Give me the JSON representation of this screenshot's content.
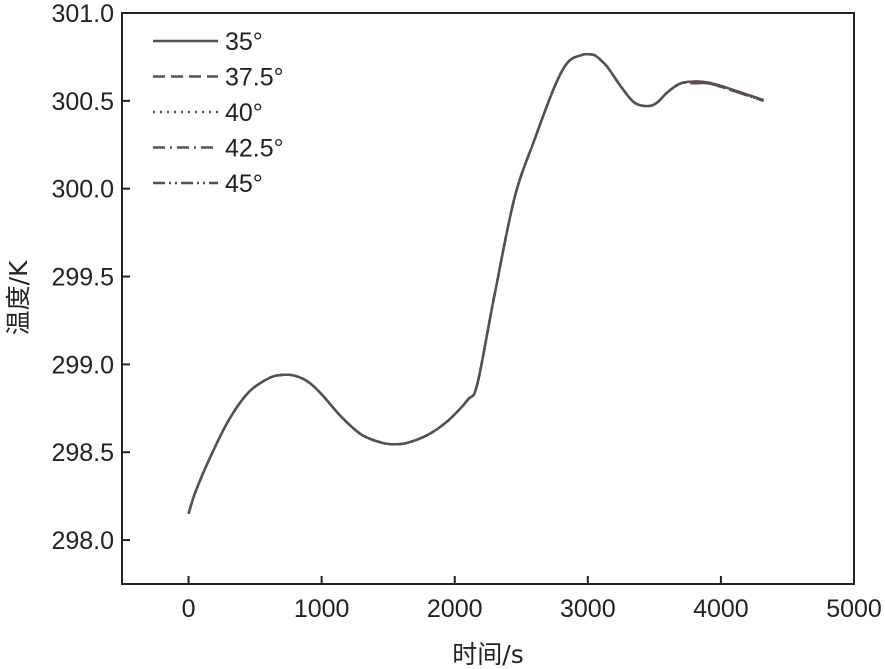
{
  "chart_data": {
    "type": "line",
    "xlabel": "时间/s",
    "ylabel": "温度/K",
    "xlim": [
      -500,
      5000
    ],
    "ylim": [
      297.75,
      301.0
    ],
    "xticks": [
      0,
      1000,
      2000,
      3000,
      4000,
      5000
    ],
    "yticks": [
      298.0,
      298.5,
      299.0,
      299.5,
      300.0,
      300.5,
      301.0
    ],
    "ytick_labels": [
      "298.0",
      "298.5",
      "299.0",
      "299.5",
      "300.0",
      "300.5",
      "301.0"
    ],
    "grid": false,
    "legend_position": "top-left",
    "line_color": "#5a4f4c",
    "x": [
      0,
      50,
      150,
      300,
      450,
      600,
      700,
      800,
      900,
      1000,
      1150,
      1300,
      1450,
      1550,
      1650,
      1800,
      1950,
      2100,
      2170,
      2300,
      2450,
      2600,
      2750,
      2850,
      2950,
      3000,
      3050,
      3100,
      3150,
      3250,
      3350,
      3450,
      3520,
      3600,
      3700,
      3800,
      3900,
      4000,
      4100,
      4200,
      4320
    ],
    "series": [
      {
        "name": "35°",
        "dash": "solid",
        "values": [
          298.15,
          298.27,
          298.45,
          298.68,
          298.84,
          298.92,
          298.94,
          298.935,
          298.9,
          298.83,
          298.7,
          298.6,
          298.555,
          298.545,
          298.555,
          298.6,
          298.68,
          298.8,
          298.89,
          299.4,
          299.95,
          300.28,
          300.58,
          300.72,
          300.76,
          300.765,
          300.76,
          300.73,
          300.69,
          300.58,
          300.49,
          300.47,
          300.49,
          300.55,
          300.6,
          300.61,
          300.605,
          300.585,
          300.56,
          300.535,
          300.505
        ]
      },
      {
        "name": "37.5°",
        "dash": "dashed",
        "values": [
          298.15,
          298.27,
          298.45,
          298.68,
          298.84,
          298.92,
          298.94,
          298.935,
          298.9,
          298.83,
          298.7,
          298.6,
          298.555,
          298.545,
          298.555,
          298.6,
          298.68,
          298.8,
          298.89,
          299.4,
          299.95,
          300.28,
          300.58,
          300.72,
          300.76,
          300.765,
          300.76,
          300.73,
          300.69,
          300.58,
          300.49,
          300.47,
          300.49,
          300.55,
          300.6,
          300.61,
          300.605,
          300.585,
          300.56,
          300.535,
          300.505
        ]
      },
      {
        "name": "40°",
        "dash": "dotted",
        "values": [
          298.15,
          298.27,
          298.45,
          298.68,
          298.84,
          298.92,
          298.94,
          298.935,
          298.9,
          298.83,
          298.7,
          298.6,
          298.555,
          298.545,
          298.555,
          298.6,
          298.68,
          298.8,
          298.89,
          299.4,
          299.95,
          300.28,
          300.58,
          300.72,
          300.76,
          300.765,
          300.76,
          300.73,
          300.69,
          300.58,
          300.49,
          300.47,
          300.49,
          300.55,
          300.6,
          300.61,
          300.605,
          300.585,
          300.56,
          300.535,
          300.505
        ]
      },
      {
        "name": "42.5°",
        "dash": "dashdot",
        "values": [
          298.15,
          298.27,
          298.45,
          298.68,
          298.84,
          298.92,
          298.94,
          298.935,
          298.9,
          298.83,
          298.7,
          298.6,
          298.555,
          298.545,
          298.555,
          298.6,
          298.68,
          298.8,
          298.89,
          299.4,
          299.95,
          300.28,
          300.58,
          300.72,
          300.76,
          300.765,
          300.76,
          300.73,
          300.69,
          300.58,
          300.49,
          300.47,
          300.49,
          300.55,
          300.6,
          300.6,
          300.6,
          300.58,
          300.555,
          300.53,
          300.5
        ]
      },
      {
        "name": "45°",
        "dash": "dashdotdot",
        "values": [
          298.15,
          298.27,
          298.45,
          298.68,
          298.84,
          298.92,
          298.94,
          298.935,
          298.9,
          298.83,
          298.7,
          298.6,
          298.555,
          298.545,
          298.555,
          298.6,
          298.68,
          298.8,
          298.89,
          299.4,
          299.95,
          300.28,
          300.58,
          300.72,
          300.76,
          300.765,
          300.76,
          300.73,
          300.69,
          300.58,
          300.49,
          300.47,
          300.49,
          300.55,
          300.6,
          300.6,
          300.6,
          300.58,
          300.555,
          300.53,
          300.5
        ]
      }
    ]
  }
}
